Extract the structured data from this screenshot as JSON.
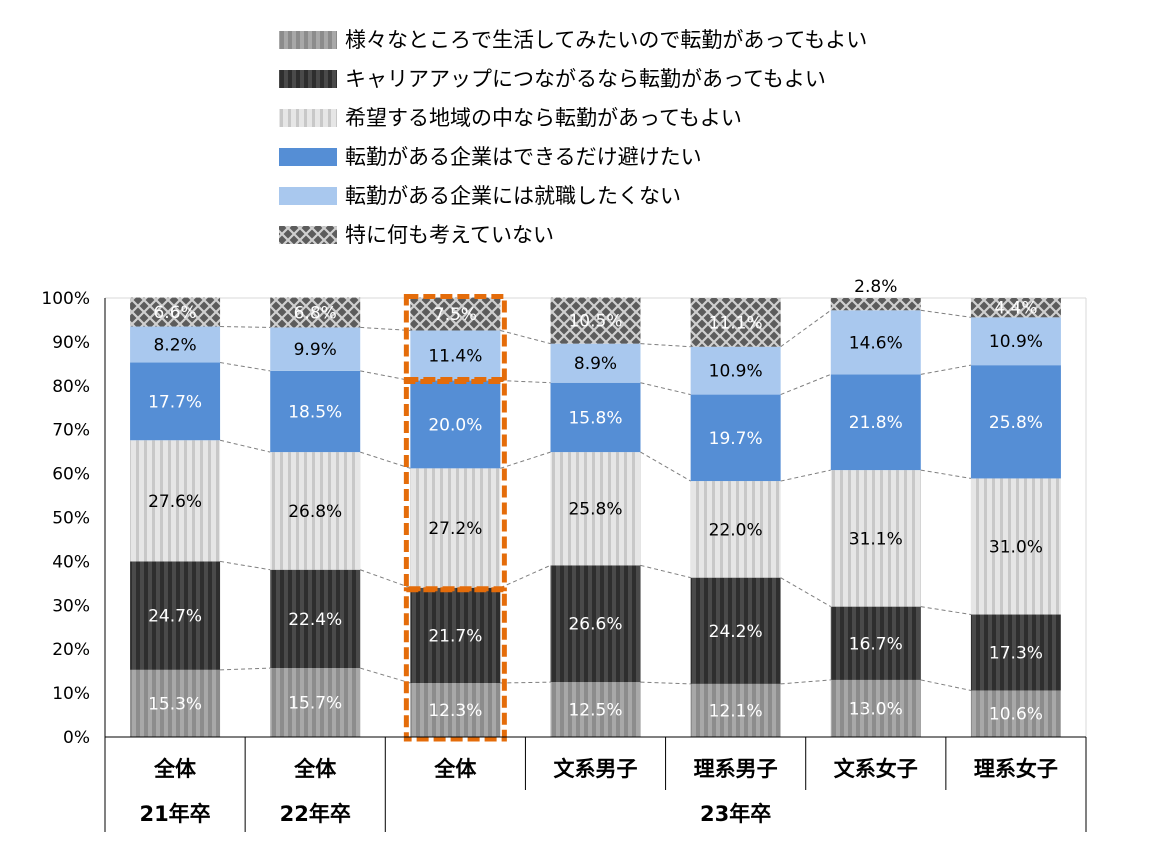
{
  "chart_data": {
    "type": "bar",
    "stacked": true,
    "title": "",
    "ylim": [
      0,
      100
    ],
    "y_ticks": [
      "0%",
      "10%",
      "20%",
      "30%",
      "40%",
      "50%",
      "60%",
      "70%",
      "80%",
      "90%",
      "100%"
    ],
    "categories": [
      "全体",
      "全体",
      "全体",
      "文系男子",
      "理系男子",
      "文系女子",
      "理系女子"
    ],
    "year_groups": [
      {
        "label": "21年卒",
        "span": [
          0,
          0
        ]
      },
      {
        "label": "22年卒",
        "span": [
          1,
          1
        ]
      },
      {
        "label": "23年卒",
        "span": [
          2,
          6
        ]
      }
    ],
    "highlight_index": 2,
    "series": [
      {
        "name": "様々なところで生活してみたいので転勤があってもよい",
        "color": "#9a9a9a",
        "pattern": "stripe-mid",
        "label_color": "#ffffff",
        "values": [
          15.3,
          15.7,
          12.3,
          12.5,
          12.1,
          13.0,
          10.6
        ],
        "labels": [
          "15.3%",
          "15.7%",
          "12.3%",
          "12.5%",
          "12.1%",
          "13.0%",
          "10.6%"
        ]
      },
      {
        "name": "キャリアアップにつながるなら転勤があってもよい",
        "color": "#3c3c3c",
        "pattern": "stripe-dark",
        "label_color": "#ffffff",
        "values": [
          24.7,
          22.4,
          21.7,
          26.6,
          24.2,
          16.7,
          17.3
        ],
        "labels": [
          "24.7%",
          "22.4%",
          "21.7%",
          "26.6%",
          "24.2%",
          "16.7%",
          "17.3%"
        ]
      },
      {
        "name": "希望する地域の中なら転勤があってもよい",
        "color": "#dcdcdc",
        "pattern": "stripe-light",
        "label_color": "#000000",
        "values": [
          27.6,
          26.8,
          27.2,
          25.8,
          22.0,
          31.1,
          31.0
        ],
        "labels": [
          "27.6%",
          "26.8%",
          "27.2%",
          "25.8%",
          "22.0%",
          "31.1%",
          "31.0%"
        ]
      },
      {
        "name": "転勤がある企業はできるだけ避けたい",
        "color": "#558ed5",
        "pattern": "solid",
        "label_color": "#ffffff",
        "values": [
          17.7,
          18.5,
          20.0,
          15.8,
          19.7,
          21.8,
          25.8
        ],
        "labels": [
          "17.7%",
          "18.5%",
          "20.0%",
          "15.8%",
          "19.7%",
          "21.8%",
          "25.8%"
        ]
      },
      {
        "name": "転勤がある企業には就職したくない",
        "color": "#a9c8ee",
        "pattern": "solid",
        "label_color": "#000000",
        "values": [
          8.2,
          9.9,
          11.4,
          8.9,
          10.9,
          14.6,
          10.9
        ],
        "labels": [
          "8.2%",
          "9.9%",
          "11.4%",
          "8.9%",
          "10.9%",
          "14.6%",
          "10.9%"
        ]
      },
      {
        "name": "特に何も考えていない",
        "color": "#5a5a5a",
        "pattern": "lattice",
        "label_color": "#ffffff",
        "values": [
          6.6,
          6.8,
          7.5,
          10.5,
          11.1,
          2.8,
          4.4
        ],
        "labels": [
          "6.6%",
          "6.8%",
          "7.5%",
          "10.5%",
          "11.1%",
          "2.8%",
          "4.4%"
        ]
      }
    ]
  }
}
